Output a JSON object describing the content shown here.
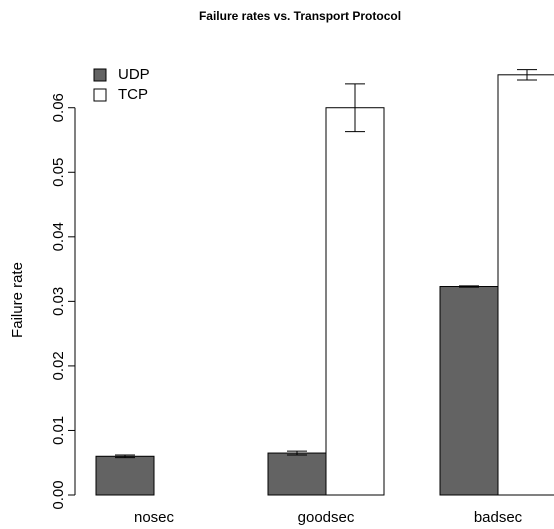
{
  "chart_data": {
    "type": "bar",
    "title": "Failure rates vs. Transport Protocol",
    "y_label": "Failure rate",
    "categories": [
      "nosec",
      "goodsec",
      "badsec"
    ],
    "series": [
      {
        "name": "UDP",
        "color": "#636363",
        "values": [
          0.006,
          0.0065,
          0.0323
        ],
        "errors": [
          0.0002,
          0.0003,
          0.0001
        ]
      },
      {
        "name": "TCP",
        "color": "#ffffff",
        "values": [
          0,
          0.06,
          0.0651
        ],
        "errors": [
          null,
          0.0037,
          0.0008
        ]
      }
    ],
    "ylim": [
      0,
      0.066
    ],
    "yticks": [
      {
        "value": 0,
        "label": "0.00"
      },
      {
        "value": 0.01,
        "label": "0.01"
      },
      {
        "value": 0.02,
        "label": "0.02"
      },
      {
        "value": 0.03,
        "label": "0.03"
      },
      {
        "value": 0.04,
        "label": "0.04"
      },
      {
        "value": 0.05,
        "label": "0.05"
      },
      {
        "value": 0.06,
        "label": "0.06"
      }
    ],
    "legend": "top-left"
  }
}
